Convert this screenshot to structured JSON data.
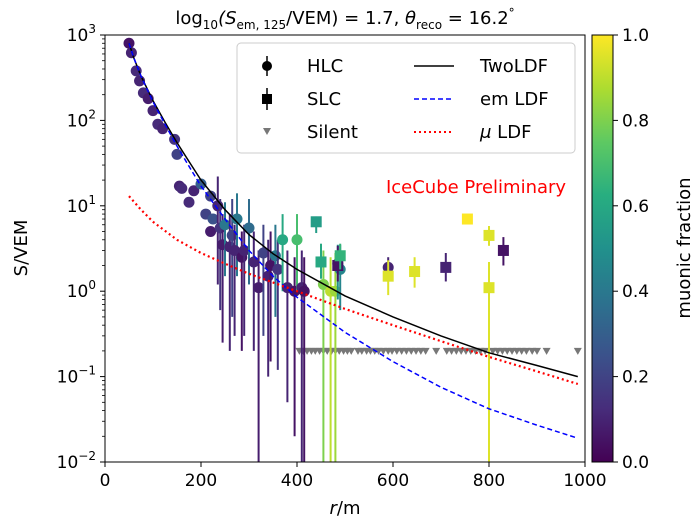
{
  "chart_data": {
    "type": "scatter",
    "title": "log₁₀(S_em,125/VEM) = 1.7, θ_reco = 16.2°",
    "title_parts": {
      "log_label": "log",
      "log_sub": "10",
      "s_open": "(S",
      "s_sub": "em, 125",
      "middle": "/VEM) = 1.7, ",
      "theta": "θ",
      "theta_sub": "reco",
      "tail": " = 16.2",
      "degree": "°"
    },
    "xlabel": "r/m",
    "xlabel_parts": {
      "r": "r",
      "rest": "/m"
    },
    "ylabel": "S/VEM",
    "xlim": [
      0,
      1000
    ],
    "ylim_log10": [
      -2,
      3
    ],
    "yscale": "log",
    "grid": false,
    "legend_position": "top-right",
    "x_ticks": [
      "0",
      "200",
      "400",
      "600",
      "800",
      "1000"
    ],
    "y_ticks": [
      {
        "base": "10",
        "exp": "−2"
      },
      {
        "base": "10",
        "exp": "−1"
      },
      {
        "base": "10",
        "exp": "0"
      },
      {
        "base": "10",
        "exp": "1"
      },
      {
        "base": "10",
        "exp": "2"
      },
      {
        "base": "10",
        "exp": "3"
      }
    ],
    "colorbar": {
      "label": "muonic fraction",
      "range": [
        0.0,
        1.0
      ],
      "ticks": [
        "0.0",
        "0.2",
        "0.4",
        "0.6",
        "0.8",
        "1.0"
      ],
      "colormap": "viridis"
    },
    "annotation": {
      "text": "IceCube Preliminary",
      "color": "#ff0000"
    },
    "legend": [
      {
        "label": "HLC",
        "marker": "circle"
      },
      {
        "label": "SLC",
        "marker": "square"
      },
      {
        "label": "Silent",
        "marker": "triangle-down"
      },
      {
        "label": "TwoLDF",
        "line": "solid",
        "color": "#000000"
      },
      {
        "label": "em LDF",
        "line": "dashed",
        "color": "#0000ff"
      },
      {
        "label": "μ LDF",
        "label_parts": {
          "mu": "μ",
          "rest": " LDF"
        },
        "line": "dotted",
        "color": "#ff0000"
      }
    ],
    "lines": {
      "twoldf": {
        "x": [
          50,
          60,
          75,
          100,
          125,
          150,
          175,
          200,
          250,
          300,
          350,
          400,
          500,
          600,
          700,
          800,
          900,
          985
        ],
        "y": [
          800,
          540,
          330,
          170,
          95,
          55,
          33,
          20,
          9.0,
          4.6,
          2.75,
          1.8,
          0.88,
          0.5,
          0.3,
          0.19,
          0.135,
          0.1
        ]
      },
      "em": {
        "x": [
          50,
          60,
          75,
          100,
          125,
          150,
          175,
          200,
          250,
          300,
          350,
          400,
          500,
          600,
          700,
          800,
          900,
          985
        ],
        "y": [
          800,
          540,
          330,
          165,
          90,
          50,
          29,
          17,
          7.0,
          3.0,
          1.5,
          0.85,
          0.33,
          0.15,
          0.075,
          0.042,
          0.027,
          0.019
        ]
      },
      "mu": {
        "x": [
          50,
          75,
          100,
          150,
          200,
          250,
          300,
          400,
          500,
          600,
          700,
          800,
          900,
          985
        ],
        "y": [
          13,
          9.0,
          6.5,
          4.0,
          2.8,
          2.1,
          1.6,
          1.0,
          0.62,
          0.4,
          0.26,
          0.17,
          0.115,
          0.082
        ]
      }
    },
    "hlc_points": [
      {
        "x": 50,
        "y": 800,
        "f": 0.05
      },
      {
        "x": 55,
        "y": 620,
        "f": 0.1
      },
      {
        "x": 65,
        "y": 380,
        "f": 0.12
      },
      {
        "x": 72,
        "y": 290,
        "f": 0.1
      },
      {
        "x": 80,
        "y": 210,
        "f": 0.12
      },
      {
        "x": 90,
        "y": 180,
        "f": 0.08
      },
      {
        "x": 100,
        "y": 130,
        "f": 0.1
      },
      {
        "x": 110,
        "y": 90,
        "f": 0.12
      },
      {
        "x": 120,
        "y": 80,
        "f": 0.1
      },
      {
        "x": 145,
        "y": 60,
        "f": 0.15
      },
      {
        "x": 150,
        "y": 40,
        "f": 0.2
      },
      {
        "x": 155,
        "y": 17,
        "f": 0.1
      },
      {
        "x": 160,
        "y": 16,
        "f": 0.12
      },
      {
        "x": 175,
        "y": 11,
        "f": 0.12
      },
      {
        "x": 185,
        "y": 15,
        "f": 0.1
      },
      {
        "x": 200,
        "y": 18,
        "f": 0.3
      },
      {
        "x": 210,
        "y": 8,
        "f": 0.2
      },
      {
        "x": 220,
        "y": 13,
        "f": 0.2
      },
      {
        "x": 220,
        "y": 5,
        "f": 0.08
      },
      {
        "x": 225,
        "y": 7,
        "f": 0.25
      },
      {
        "x": 235,
        "y": 10,
        "f": 0.1,
        "elo": 1.2,
        "ehi": 22
      },
      {
        "x": 240,
        "y": 5.5,
        "f": 0.15,
        "elo": 0.6,
        "ehi": 12
      },
      {
        "x": 245,
        "y": 3.5,
        "f": 0.08,
        "elo": 0.25,
        "ehi": 8
      },
      {
        "x": 250,
        "y": 6,
        "f": 0.4,
        "elo": 1.5,
        "ehi": 11
      },
      {
        "x": 260,
        "y": 3.3,
        "f": 0.1,
        "elo": 0.2,
        "ehi": 8
      },
      {
        "x": 265,
        "y": 4.5,
        "f": 0.2,
        "elo": 0.5,
        "ehi": 12
      },
      {
        "x": 275,
        "y": 7,
        "f": 0.4,
        "elo": 1.5,
        "ehi": 14
      },
      {
        "x": 270,
        "y": 3,
        "f": 0.1,
        "elo": 0.3,
        "ehi": 6
      },
      {
        "x": 285,
        "y": 2.5,
        "f": 0.05,
        "elo": 0.2,
        "ehi": 5
      },
      {
        "x": 290,
        "y": 3.0,
        "f": 0.1,
        "elo": 0.3,
        "ehi": 6
      },
      {
        "x": 300,
        "y": 5.5,
        "f": 0.35,
        "elo": 1.2,
        "ehi": 12
      },
      {
        "x": 310,
        "y": 2.2,
        "f": 0.1,
        "elo": 0.2,
        "ehi": 5
      },
      {
        "x": 320,
        "y": 1.1,
        "f": 0.08,
        "elo": 0.01,
        "ehi": 3
      },
      {
        "x": 330,
        "y": 2.8,
        "f": 0.2,
        "elo": 0.3,
        "ehi": 6
      },
      {
        "x": 340,
        "y": 1.5,
        "f": 0.1,
        "elo": 0.1,
        "ehi": 4
      },
      {
        "x": 345,
        "y": 2.0,
        "f": 0.05,
        "elo": 0.15,
        "ehi": 5
      },
      {
        "x": 355,
        "y": 2.6,
        "f": 0.4,
        "elo": 0.5,
        "ehi": 6
      },
      {
        "x": 360,
        "y": 1.8,
        "f": 0.15,
        "elo": 0.12,
        "ehi": 4
      },
      {
        "x": 370,
        "y": 4.0,
        "f": 0.6,
        "elo": 1.0,
        "ehi": 8
      },
      {
        "x": 380,
        "y": 1.1,
        "f": 0.1,
        "elo": 0.05,
        "ehi": 3
      },
      {
        "x": 395,
        "y": 1.0,
        "f": 0.05,
        "elo": 0.02,
        "ehi": 2.5
      },
      {
        "x": 400,
        "y": 4.0,
        "f": 0.7,
        "elo": 1.0,
        "ehi": 8
      },
      {
        "x": 410,
        "y": 1.1,
        "f": 0.1,
        "elo": 0.01,
        "ehi": 3
      },
      {
        "x": 415,
        "y": 1.0,
        "f": 0.05,
        "elo": 0.01,
        "ehi": 2.5
      },
      {
        "x": 455,
        "y": 1.2,
        "f": 0.8,
        "elo": 0.01,
        "ehi": 3
      },
      {
        "x": 470,
        "y": 1.0,
        "f": 0.9,
        "elo": 0.01,
        "ehi": 2.5
      },
      {
        "x": 480,
        "y": 1.0,
        "f": 0.85,
        "elo": 0.01,
        "ehi": 2.8
      },
      {
        "x": 485,
        "y": 2.1,
        "f": 0.5,
        "elo": 0.8,
        "ehi": 3.5
      },
      {
        "x": 490,
        "y": 1.8,
        "f": 0.45,
        "elo": 0.6,
        "ehi": 3.5
      },
      {
        "x": 590,
        "y": 1.9,
        "f": 0.1,
        "elo": 1.4,
        "ehi": 2.5
      }
    ],
    "slc_points": [
      {
        "x": 440,
        "y": 6.5,
        "f": 0.55,
        "elo": 4.8,
        "ehi": 7.5
      },
      {
        "x": 450,
        "y": 2.2,
        "f": 0.6,
        "elo": 1.4,
        "ehi": 3.6
      },
      {
        "x": 485,
        "y": 2.0,
        "f": 0.05,
        "elo": 1.3,
        "ehi": 3.4
      },
      {
        "x": 490,
        "y": 2.6,
        "f": 0.65,
        "elo": 1.8,
        "ehi": 3.6
      },
      {
        "x": 590,
        "y": 1.5,
        "f": 0.95,
        "elo": 0.9,
        "ehi": 2.3
      },
      {
        "x": 645,
        "y": 1.7,
        "f": 0.95,
        "elo": 1.1,
        "ehi": 2.5
      },
      {
        "x": 710,
        "y": 1.9,
        "f": 0.1,
        "elo": 1.3,
        "ehi": 2.8
      },
      {
        "x": 755,
        "y": 7.0,
        "f": 1.0,
        "elo": 6.2,
        "ehi": 7.8
      },
      {
        "x": 800,
        "y": 4.5,
        "f": 0.95,
        "elo": 3.4,
        "ehi": 5.8
      },
      {
        "x": 800,
        "y": 1.1,
        "f": 0.95,
        "elo": 0.01,
        "ehi": 2.2
      },
      {
        "x": 830,
        "y": 3.0,
        "f": 0.05,
        "elo": 2.0,
        "ehi": 4.3
      }
    ],
    "silent_points": {
      "y": 0.2,
      "x": [
        405,
        413,
        421,
        430,
        438,
        447,
        455,
        463,
        472,
        480,
        488,
        497,
        505,
        513,
        527,
        535,
        545,
        553,
        562,
        570,
        580,
        590,
        598,
        608,
        618,
        628,
        638,
        648,
        658,
        668,
        690,
        712,
        722,
        732,
        742,
        752,
        762,
        772,
        782,
        792,
        808,
        818,
        828,
        838,
        848,
        858,
        868,
        878,
        890,
        900,
        920,
        985
      ]
    }
  }
}
